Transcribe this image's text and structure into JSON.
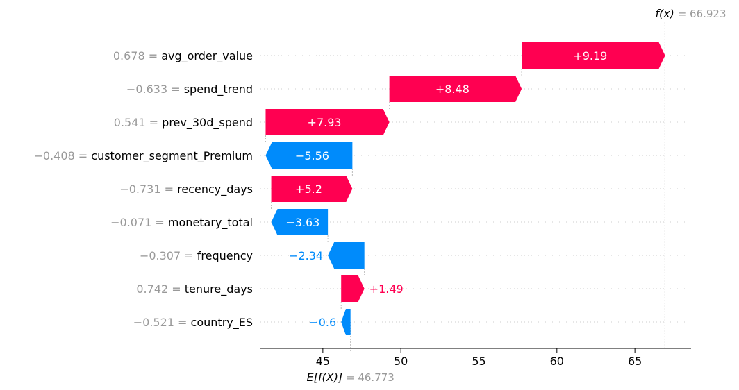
{
  "chart_data": {
    "type": "waterfall",
    "base_value": {
      "label_prefix": "E[f(X)]",
      "eq": " = ",
      "value_text": "46.773",
      "value": 46.773
    },
    "output_value": {
      "label_prefix": "f(x)",
      "eq": " = ",
      "value_text": "66.923",
      "value": 66.923
    },
    "features": [
      {
        "value_text": "0.678",
        "name": "avg_order_value",
        "contribution": 9.19,
        "label": "+9.19"
      },
      {
        "value_text": "−0.633",
        "name": "spend_trend",
        "contribution": 8.48,
        "label": "+8.48"
      },
      {
        "value_text": "0.541",
        "name": "prev_30d_spend",
        "contribution": 7.93,
        "label": "+7.93"
      },
      {
        "value_text": "−0.408",
        "name": "customer_segment_Premium",
        "contribution": -5.56,
        "label": "−5.56"
      },
      {
        "value_text": "−0.731",
        "name": "recency_days",
        "contribution": 5.2,
        "label": "+5.2"
      },
      {
        "value_text": "−0.071",
        "name": "monetary_total",
        "contribution": -3.63,
        "label": "−3.63"
      },
      {
        "value_text": "−0.307",
        "name": "frequency",
        "contribution": -2.34,
        "label": "−2.34"
      },
      {
        "value_text": "0.742",
        "name": "tenure_days",
        "contribution": 1.49,
        "label": "+1.49"
      },
      {
        "value_text": "−0.521",
        "name": "country_ES",
        "contribution": -0.6,
        "label": "−0.6"
      }
    ],
    "x_ticks": [
      45,
      50,
      55,
      60,
      65
    ],
    "x_range": [
      41.0,
      68.6
    ],
    "colors": {
      "positive": "#ff0051",
      "negative": "#008bfb"
    }
  }
}
